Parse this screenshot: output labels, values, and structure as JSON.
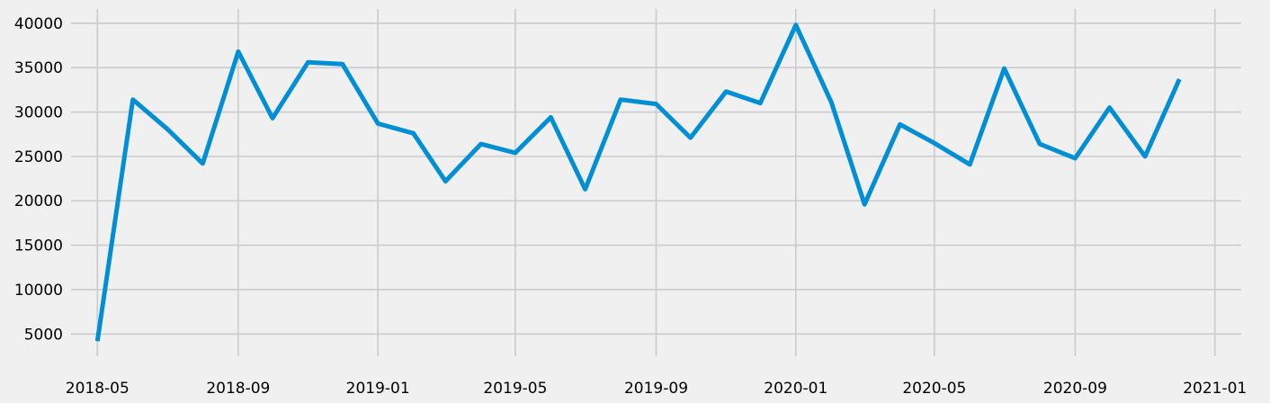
{
  "chart_data": {
    "type": "line",
    "title": "",
    "xlabel": "",
    "ylabel": "",
    "grid": true,
    "legend": "none",
    "colors": {
      "background": "#f0f0f0",
      "grid": "#cbcbcb",
      "line": "#008fd5"
    },
    "xlim": [
      "2018-04-08",
      "2021-01-24"
    ],
    "ylim": [
      2500,
      41600
    ],
    "x_ticks": [
      "2018-05",
      "2018-09",
      "2019-01",
      "2019-05",
      "2019-09",
      "2020-01",
      "2020-05",
      "2020-09",
      "2021-01"
    ],
    "y_ticks": [
      5000,
      10000,
      15000,
      20000,
      25000,
      30000,
      35000,
      40000
    ],
    "series": [
      {
        "x": [
          "2018-05-01",
          "2018-06-01",
          "2018-07-01",
          "2018-08-01",
          "2018-09-01",
          "2018-10-01",
          "2018-11-01",
          "2018-12-01",
          "2019-01-01",
          "2019-02-01",
          "2019-03-01",
          "2019-04-01",
          "2019-05-01",
          "2019-06-01",
          "2019-07-01",
          "2019-08-01",
          "2019-09-01",
          "2019-10-01",
          "2019-11-01",
          "2019-12-01",
          "2020-01-01",
          "2020-02-01",
          "2020-03-01",
          "2020-04-01",
          "2020-05-01",
          "2020-06-01",
          "2020-07-01",
          "2020-08-01",
          "2020-09-01",
          "2020-10-01",
          "2020-11-01",
          "2020-12-01"
        ],
        "values": [
          4200,
          31400,
          28100,
          24200,
          36800,
          29300,
          35600,
          35400,
          28700,
          27600,
          22200,
          26400,
          25400,
          29400,
          21300,
          31400,
          30900,
          27100,
          32300,
          31000,
          39800,
          31100,
          19600,
          28600,
          26500,
          24100,
          34900,
          26400,
          24800,
          30500,
          25000,
          33700
        ]
      }
    ]
  }
}
